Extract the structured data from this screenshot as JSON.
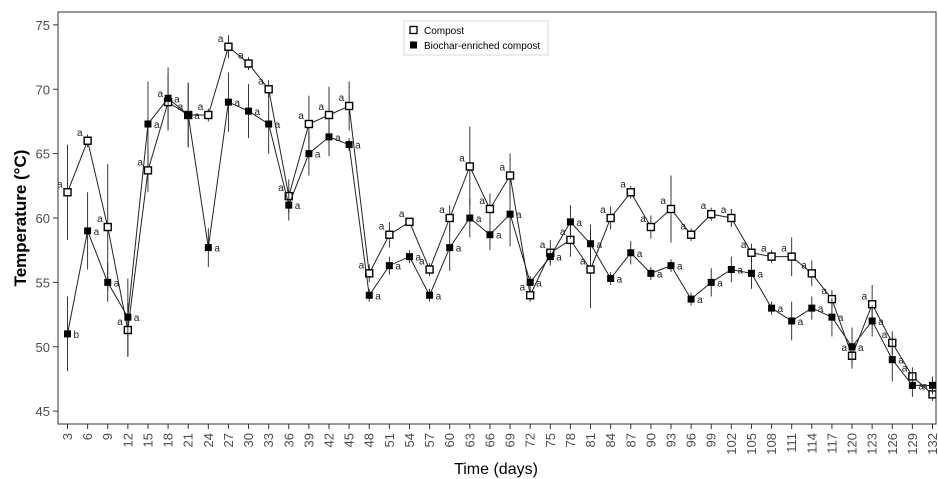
{
  "chart_data": {
    "type": "line",
    "xlabel": "Time (days)",
    "ylabel": "Temperature (°C)",
    "ylim": [
      44,
      76
    ],
    "yticks": [
      45,
      50,
      55,
      60,
      65,
      70,
      75
    ],
    "xticks": [
      "3",
      "6",
      "9",
      "12",
      "15",
      "18",
      "21",
      "24",
      "27",
      "30",
      "33",
      "36",
      "39",
      "42",
      "45",
      "48",
      "51",
      "54",
      "57",
      "60",
      "63",
      "66",
      "69",
      "72",
      "75",
      "78",
      "81",
      "84",
      "87",
      "90",
      "93",
      "96",
      "99",
      "102",
      "105",
      "108",
      "111",
      "114",
      "117",
      "120",
      "123",
      "126",
      "129",
      "132"
    ],
    "grid": false,
    "legend_position": "top-center",
    "x": [
      3,
      6,
      9,
      12,
      15,
      18,
      21,
      24,
      27,
      30,
      33,
      36,
      39,
      42,
      45,
      48,
      51,
      54,
      57,
      60,
      63,
      66,
      69,
      72,
      75,
      78,
      81,
      84,
      87,
      90,
      93,
      96,
      99,
      102,
      105,
      108,
      111,
      114,
      117,
      120,
      123,
      126,
      129,
      132
    ],
    "series": [
      {
        "name": "Compost",
        "marker": "open-square",
        "values": [
          62.0,
          66.0,
          59.3,
          51.3,
          63.7,
          69.0,
          68.0,
          68.0,
          73.3,
          72.0,
          70.0,
          61.7,
          67.3,
          68.0,
          68.7,
          55.7,
          58.7,
          59.7,
          56.0,
          60.0,
          64.0,
          60.7,
          63.3,
          54.0,
          57.3,
          58.3,
          56.0,
          60.0,
          62.0,
          59.3,
          60.7,
          58.7,
          60.3,
          60.0,
          57.3,
          57.0,
          57.0,
          55.7,
          53.7,
          49.3,
          53.3,
          50.3,
          47.7,
          46.3
        ],
        "errors": [
          3.7,
          0.5,
          4.9,
          2.1,
          1.7,
          2.2,
          2.5,
          0.5,
          0.9,
          0.5,
          0.7,
          1.3,
          2.2,
          2.2,
          1.9,
          0.7,
          1.0,
          0.2,
          0.5,
          1.0,
          3.1,
          1.2,
          1.7,
          0.5,
          1.0,
          1.3,
          3.0,
          0.9,
          0.5,
          0.9,
          2.6,
          0.5,
          0.5,
          0.7,
          0.7,
          0.5,
          1.5,
          1.0,
          0.7,
          1.0,
          1.5,
          0.9,
          0.7,
          0.5
        ],
        "labels": [
          "a",
          "a",
          "a",
          "a",
          "a",
          "a",
          "a",
          "a",
          "a",
          "a",
          "a",
          "a",
          "a",
          "a",
          "a",
          "a",
          "a",
          "a",
          "a",
          "a",
          "a",
          "a",
          "a",
          "a",
          "a",
          "a",
          "a",
          "a",
          "a",
          "a",
          "a",
          "a",
          "a",
          "a",
          "a",
          "a",
          "a",
          "a",
          "a",
          "a",
          "a",
          "a",
          "a",
          "a"
        ]
      },
      {
        "name": "Biochar-enriched compost",
        "marker": "filled-square",
        "values": [
          51.0,
          59.0,
          55.0,
          52.3,
          67.3,
          69.3,
          68.0,
          57.7,
          69.0,
          68.3,
          67.3,
          61.0,
          65.0,
          66.3,
          65.7,
          54.0,
          56.3,
          57.0,
          54.0,
          57.7,
          60.0,
          58.7,
          60.3,
          55.0,
          57.0,
          59.7,
          58.0,
          55.3,
          57.3,
          55.7,
          56.3,
          53.7,
          55.0,
          56.0,
          55.7,
          53.0,
          52.0,
          53.0,
          52.3,
          50.0,
          52.0,
          49.0,
          47.0,
          47.0
        ],
        "errors": [
          2.9,
          3.0,
          1.5,
          3.0,
          3.3,
          2.4,
          2.5,
          1.5,
          2.3,
          2.1,
          2.3,
          1.2,
          1.7,
          1.5,
          0.5,
          0.5,
          0.7,
          0.5,
          0.5,
          1.8,
          1.5,
          1.2,
          2.5,
          0.5,
          0.5,
          1.3,
          1.5,
          0.5,
          0.9,
          0.5,
          0.5,
          0.5,
          1.1,
          1.0,
          1.2,
          0.5,
          1.5,
          0.9,
          1.5,
          1.5,
          1.2,
          1.7,
          0.9,
          0.7
        ],
        "labels": [
          "b",
          "a",
          "a",
          "a",
          "a",
          "a",
          "a",
          "a",
          "a",
          "a",
          "a",
          "a",
          "a",
          "a",
          "a",
          "a",
          "a",
          "a",
          "a",
          "a",
          "a",
          "a",
          "a",
          "a",
          "a",
          "a",
          "a",
          "a",
          "a",
          "a",
          "a",
          "a",
          "a",
          "a",
          "a",
          "a",
          "a",
          "a",
          "a",
          "a",
          "a",
          "a",
          "a",
          "a"
        ]
      }
    ]
  }
}
